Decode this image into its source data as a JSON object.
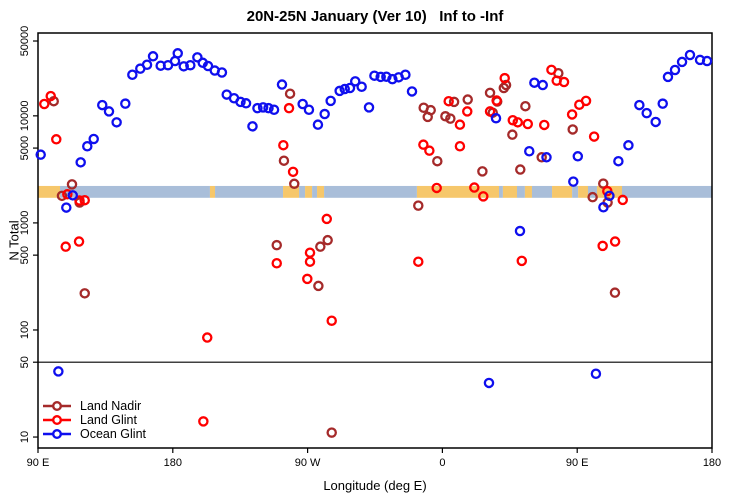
{
  "title": "20N-25N January (Ver 10)   Inf to -Inf",
  "legend": {
    "items": [
      {
        "label": "Land Nadir",
        "color": "#A52A2A"
      },
      {
        "label": "Land Glint",
        "color": "#FF0000"
      },
      {
        "label": "Ocean Glint",
        "color": "#0F0FEE"
      }
    ]
  },
  "chart_data": {
    "type": "scatter",
    "title": "20N-25N January (Ver 10)   Inf to -Inf",
    "xlabel": "Longitude (deg E)",
    "ylabel": "N Total",
    "grid": false,
    "legend_position": "bottom-left",
    "x_axis": {
      "range": [
        -270,
        180
      ],
      "ticks": [
        {
          "value": -270,
          "label": "90 E"
        },
        {
          "value": -180,
          "label": "180"
        },
        {
          "value": -90,
          "label": "90 W"
        },
        {
          "value": 0,
          "label": "0"
        },
        {
          "value": 90,
          "label": "90 E"
        },
        {
          "value": 180,
          "label": "180"
        }
      ]
    },
    "y_axis": {
      "scale": "log",
      "range": [
        7.9,
        59400
      ],
      "ticks": [
        {
          "value": 10,
          "label": "10"
        },
        {
          "value": 50,
          "label": "50"
        },
        {
          "value": 100,
          "label": "100"
        },
        {
          "value": 500,
          "label": "500"
        },
        {
          "value": 1000,
          "label": "1000"
        },
        {
          "value": 5000,
          "label": "5000"
        },
        {
          "value": 10000,
          "label": "10000"
        },
        {
          "value": 50000,
          "label": "50000"
        }
      ]
    },
    "reference_line_y": 50,
    "map_band": {
      "y_range": [
        1716,
        2214
      ],
      "ocean_color": "#A9BED9",
      "land_color": "#F6C76B",
      "segments": [
        {
          "type": "land",
          "lon": [
            -270,
            -255.3
          ]
        },
        {
          "type": "ocean",
          "lon": [
            -255.3,
            -155.2
          ]
        },
        {
          "type": "land",
          "lon": [
            -155.2,
            -151.8
          ]
        },
        {
          "type": "ocean",
          "lon": [
            -151.8,
            -106.4
          ]
        },
        {
          "type": "land",
          "lon": [
            -106.4,
            -95.7
          ]
        },
        {
          "type": "ocean",
          "lon": [
            -95.7,
            -91.7
          ]
        },
        {
          "type": "land",
          "lon": [
            -91.7,
            -87.0
          ]
        },
        {
          "type": "ocean",
          "lon": [
            -87.0,
            -83.7
          ]
        },
        {
          "type": "land",
          "lon": [
            -83.7,
            -79.0
          ]
        },
        {
          "type": "ocean",
          "lon": [
            -79.0,
            -17.0
          ]
        },
        {
          "type": "land",
          "lon": [
            -17.0,
            37.8
          ]
        },
        {
          "type": "ocean",
          "lon": [
            37.8,
            40.4
          ]
        },
        {
          "type": "land",
          "lon": [
            40.4,
            49.8
          ]
        },
        {
          "type": "ocean",
          "lon": [
            49.8,
            55.1
          ]
        },
        {
          "type": "land",
          "lon": [
            55.1,
            59.8
          ]
        },
        {
          "type": "ocean",
          "lon": [
            59.8,
            73.2
          ]
        },
        {
          "type": "land",
          "lon": [
            73.2,
            86.6
          ]
        },
        {
          "type": "ocean",
          "lon": [
            86.6,
            90.6
          ]
        },
        {
          "type": "land",
          "lon": [
            90.6,
            97.2
          ]
        },
        {
          "type": "ocean",
          "lon": [
            97.2,
            103.2
          ]
        },
        {
          "type": "land",
          "lon": [
            103.2,
            119.9
          ]
        },
        {
          "type": "ocean",
          "lon": [
            119.9,
            180
          ]
        }
      ]
    },
    "series": [
      {
        "name": "Land Nadir",
        "color": "#A52A2A",
        "points": [
          [
            -259.5,
            13700
          ],
          [
            -254.0,
            1790
          ],
          [
            -247.3,
            2290
          ],
          [
            -242.2,
            1550
          ],
          [
            -238.8,
            220
          ],
          [
            -110.6,
            620
          ],
          [
            -105.8,
            3810
          ],
          [
            -101.7,
            16100
          ],
          [
            -98.9,
            2320
          ],
          [
            -82.8,
            258
          ],
          [
            -81.5,
            600
          ],
          [
            -76.6,
            690
          ],
          [
            -73.9,
            11
          ],
          [
            -16.1,
            1450
          ],
          [
            -12.5,
            11900
          ],
          [
            -9.8,
            9770
          ],
          [
            -7.8,
            11300
          ],
          [
            -3.4,
            3770
          ],
          [
            2.0,
            9910
          ],
          [
            5.3,
            9420
          ],
          [
            7.8,
            13500
          ],
          [
            16.9,
            14200
          ],
          [
            26.7,
            3030
          ],
          [
            31.8,
            16400
          ],
          [
            33.6,
            10700
          ],
          [
            36.6,
            13600
          ],
          [
            41.0,
            18200
          ],
          [
            42.5,
            19400
          ],
          [
            46.7,
            6670
          ],
          [
            52.0,
            3150
          ],
          [
            55.4,
            12300
          ],
          [
            66.3,
            4100
          ],
          [
            77.4,
            25000
          ],
          [
            87.0,
            7460
          ],
          [
            100.3,
            1740
          ],
          [
            107.4,
            2330
          ],
          [
            110.3,
            1550
          ],
          [
            115.2,
            223
          ]
        ]
      },
      {
        "name": "Land Glint",
        "color": "#FF0000",
        "points": [
          [
            -265.8,
            12900
          ],
          [
            -261.5,
            15300
          ],
          [
            -257.8,
            6040
          ],
          [
            -251.5,
            600
          ],
          [
            -250.4,
            1850
          ],
          [
            -242.6,
            670
          ],
          [
            -242.3,
            1620
          ],
          [
            -238.8,
            1630
          ],
          [
            -159.6,
            14
          ],
          [
            -157.0,
            85
          ],
          [
            -110.6,
            420
          ],
          [
            -106.2,
            5320
          ],
          [
            -102.4,
            11800
          ],
          [
            -99.7,
            3000
          ],
          [
            -90.2,
            300
          ],
          [
            -88.4,
            527
          ],
          [
            -88.4,
            434
          ],
          [
            -77.2,
            1090
          ],
          [
            -73.9,
            122
          ],
          [
            -16.1,
            434
          ],
          [
            -12.7,
            5380
          ],
          [
            -8.7,
            4730
          ],
          [
            -3.8,
            2120
          ],
          [
            4.2,
            13700
          ],
          [
            11.7,
            8270
          ],
          [
            11.7,
            5200
          ],
          [
            16.6,
            11000
          ],
          [
            21.3,
            2140
          ],
          [
            27.3,
            1770
          ],
          [
            31.8,
            11000
          ],
          [
            36.2,
            13900
          ],
          [
            41.6,
            22500
          ],
          [
            47.0,
            9100
          ],
          [
            50.3,
            8700
          ],
          [
            53.0,
            442
          ],
          [
            57.0,
            8390
          ],
          [
            68.0,
            8220
          ],
          [
            72.8,
            26900
          ],
          [
            76.3,
            21300
          ],
          [
            81.2,
            20700
          ],
          [
            86.6,
            10300
          ],
          [
            91.4,
            12700
          ],
          [
            95.9,
            13800
          ],
          [
            101.3,
            6400
          ],
          [
            107.0,
            610
          ],
          [
            110.1,
            1980
          ],
          [
            115.3,
            670
          ],
          [
            120.4,
            1640
          ]
        ]
      },
      {
        "name": "Ocean Glint",
        "color": "#0F0FEE",
        "points": [
          [
            -268.2,
            4340
          ],
          [
            -256.4,
            41
          ],
          [
            -251.1,
            1390
          ],
          [
            -246.8,
            1810
          ],
          [
            -241.5,
            3680
          ],
          [
            -237.1,
            5200
          ],
          [
            -232.8,
            6080
          ],
          [
            -227.1,
            12600
          ],
          [
            -222.6,
            11000
          ],
          [
            -217.5,
            8700
          ],
          [
            -211.7,
            13000
          ],
          [
            -207.0,
            24200
          ],
          [
            -201.7,
            27600
          ],
          [
            -197.2,
            30000
          ],
          [
            -193.2,
            36000
          ],
          [
            -188.1,
            29400
          ],
          [
            -183.2,
            29700
          ],
          [
            -178.5,
            32500
          ],
          [
            -176.7,
            38400
          ],
          [
            -172.7,
            29000
          ],
          [
            -168.3,
            29700
          ],
          [
            -163.6,
            35200
          ],
          [
            -160.0,
            31300
          ],
          [
            -156.5,
            29200
          ],
          [
            -152.0,
            26500
          ],
          [
            -147.2,
            25400
          ],
          [
            -144.0,
            15800
          ],
          [
            -139.1,
            14600
          ],
          [
            -134.8,
            13500
          ],
          [
            -131.1,
            13100
          ],
          [
            -126.8,
            7980
          ],
          [
            -123.5,
            11800
          ],
          [
            -119.7,
            12000
          ],
          [
            -116.1,
            11800
          ],
          [
            -112.4,
            11400
          ],
          [
            -107.1,
            19600
          ],
          [
            -93.3,
            12900
          ],
          [
            -89.1,
            11400
          ],
          [
            -83.1,
            8270
          ],
          [
            -78.6,
            10400
          ],
          [
            -74.6,
            13800
          ],
          [
            -68.6,
            17100
          ],
          [
            -65.2,
            17800
          ],
          [
            -61.7,
            18200
          ],
          [
            -58.2,
            21000
          ],
          [
            -53.9,
            18700
          ],
          [
            -49.0,
            12000
          ],
          [
            -45.4,
            23700
          ],
          [
            -41.2,
            23100
          ],
          [
            -37.4,
            23200
          ],
          [
            -33.4,
            22000
          ],
          [
            -29.2,
            22900
          ],
          [
            -24.7,
            24200
          ],
          [
            -20.3,
            16900
          ],
          [
            31.1,
            32
          ],
          [
            35.8,
            9500
          ],
          [
            51.8,
            840
          ],
          [
            58.0,
            4670
          ],
          [
            61.4,
            20400
          ],
          [
            67.0,
            19400
          ],
          [
            69.5,
            4100
          ],
          [
            87.4,
            2430
          ],
          [
            90.4,
            4190
          ],
          [
            102.5,
            39
          ],
          [
            107.5,
            1400
          ],
          [
            111.5,
            1790
          ],
          [
            117.5,
            3770
          ],
          [
            124.2,
            5310
          ],
          [
            131.5,
            12600
          ],
          [
            136.4,
            10600
          ],
          [
            142.4,
            8770
          ],
          [
            147.1,
            13000
          ],
          [
            150.6,
            23100
          ],
          [
            155.3,
            26800
          ],
          [
            160.0,
            31900
          ],
          [
            165.3,
            37000
          ],
          [
            172.0,
            33300
          ],
          [
            176.7,
            32500
          ]
        ]
      }
    ]
  }
}
